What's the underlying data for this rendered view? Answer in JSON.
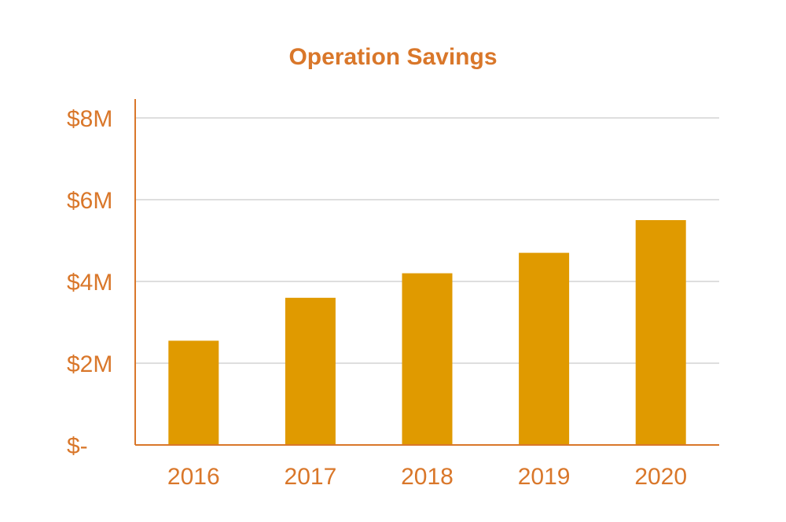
{
  "chart_data": {
    "type": "bar",
    "title": "Operation Savings",
    "xlabel": "",
    "ylabel": "",
    "categories": [
      "2016",
      "2017",
      "2018",
      "2019",
      "2020"
    ],
    "values": [
      2.55,
      3.6,
      4.2,
      4.7,
      5.5
    ],
    "ylim": [
      0,
      8
    ],
    "yticks": [
      0,
      2,
      4,
      6,
      8
    ],
    "ytick_labels": [
      "$-",
      "$2M",
      "$4M",
      "$6M",
      "$8M"
    ],
    "grid": true,
    "legend": "none",
    "colors": {
      "bar": "#E09A00",
      "text": "#D9772A",
      "axis": "#D9772A",
      "grid": "#D4D4D4"
    }
  }
}
